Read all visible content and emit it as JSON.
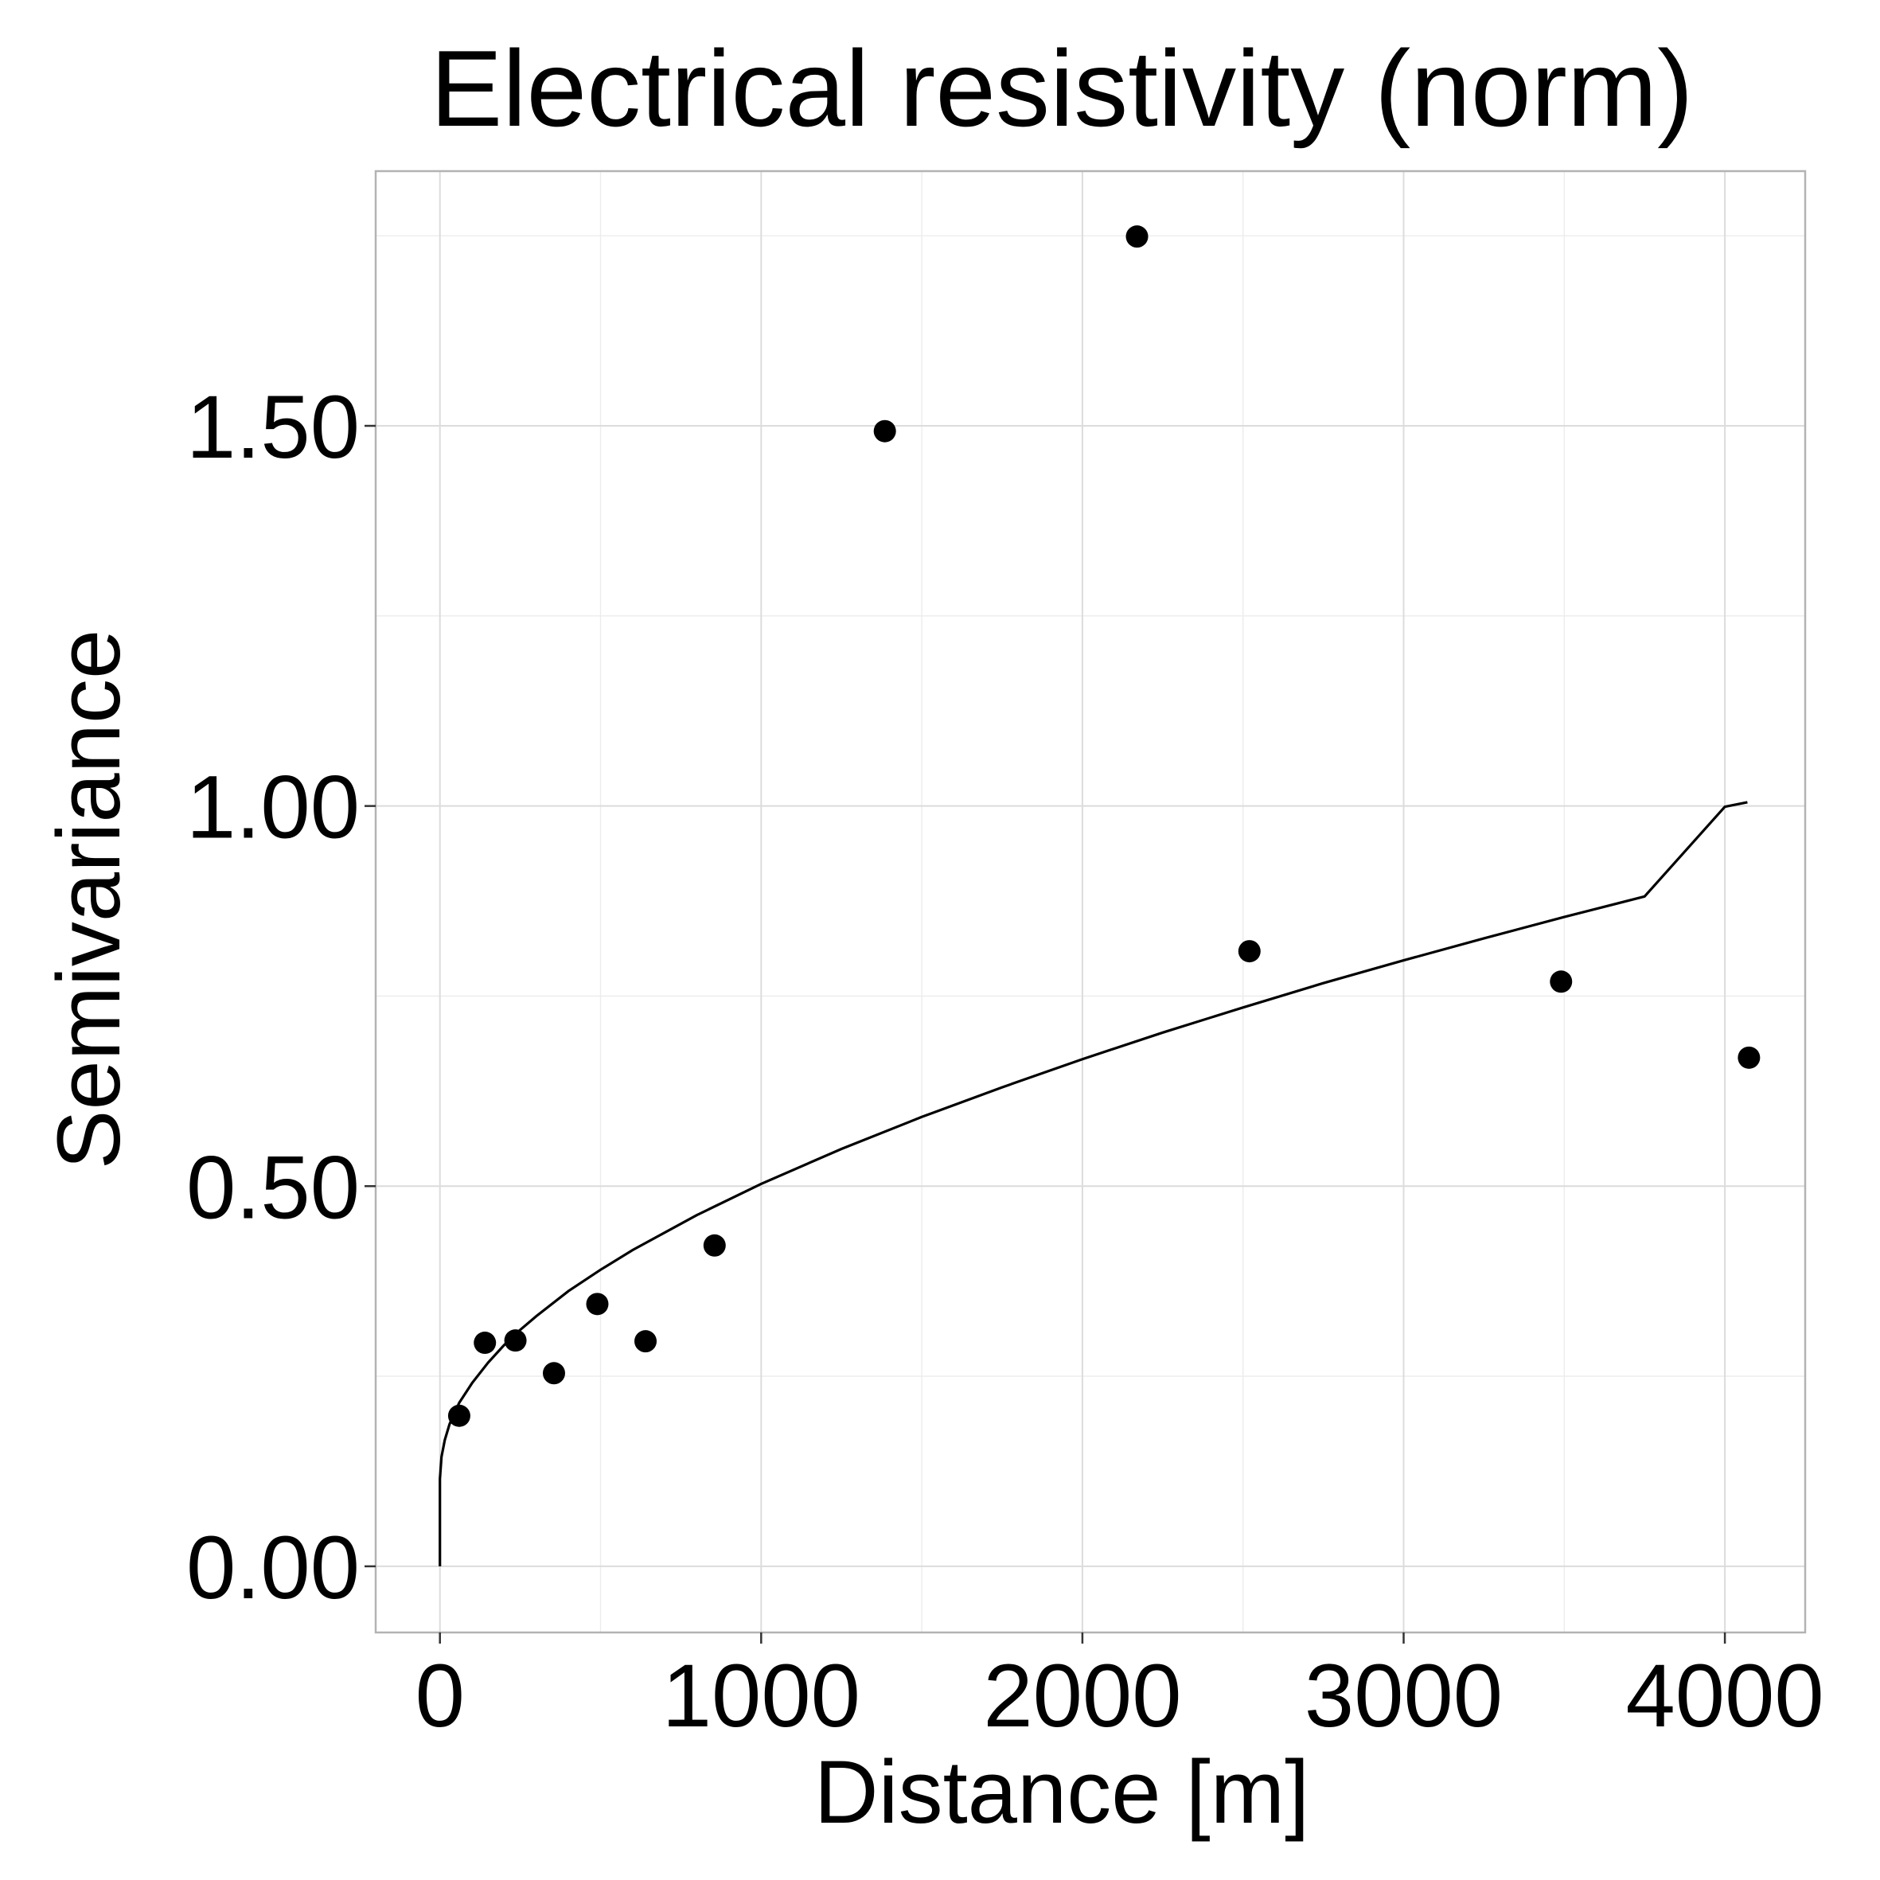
{
  "chart_data": {
    "type": "scatter",
    "title": "Electrical resistivity (norm)",
    "xlabel": "Distance [m]",
    "ylabel": "Semivariance",
    "xlim": [
      -200,
      4250
    ],
    "ylim": [
      -0.087,
      1.835
    ],
    "x_ticks": [
      0,
      1000,
      2000,
      3000,
      4000
    ],
    "x_tick_labels": [
      "0",
      "1000",
      "2000",
      "3000",
      "4000"
    ],
    "y_ticks": [
      0.0,
      0.5,
      1.0,
      1.5
    ],
    "y_tick_labels": [
      "0.00",
      "0.50",
      "1.00",
      "1.50"
    ],
    "grid": true,
    "legend": "none",
    "series": [
      {
        "type": "scatter",
        "x": [
          60,
          140,
          235,
          355,
          490,
          640,
          855,
          1385,
          2170,
          2520,
          3490,
          4075
        ],
        "y": [
          0.198,
          0.294,
          0.297,
          0.254,
          0.345,
          0.296,
          0.422,
          1.493,
          1.749,
          0.809,
          0.769,
          0.669
        ]
      },
      {
        "type": "line",
        "x": [
          0,
          0,
          5,
          15,
          30,
          60,
          100,
          150,
          200,
          250,
          300,
          400,
          500,
          600,
          800,
          1000,
          1250,
          1500,
          1750,
          2000,
          2250,
          2500,
          2750,
          3000,
          3250,
          3500,
          3750,
          4000,
          4070
        ],
        "y": [
          0.0,
          0.115,
          0.144,
          0.166,
          0.187,
          0.215,
          0.241,
          0.268,
          0.291,
          0.311,
          0.329,
          0.362,
          0.39,
          0.416,
          0.462,
          0.503,
          0.549,
          0.591,
          0.63,
          0.667,
          0.702,
          0.735,
          0.767,
          0.797,
          0.826,
          0.854,
          0.881,
          0.999,
          1.005
        ]
      }
    ]
  },
  "colors": {
    "points": "#000000",
    "line": "#000000",
    "grid_major": "#dcdcdc",
    "grid_minor": "#ececec",
    "panel_border": "#b3b3b3"
  }
}
